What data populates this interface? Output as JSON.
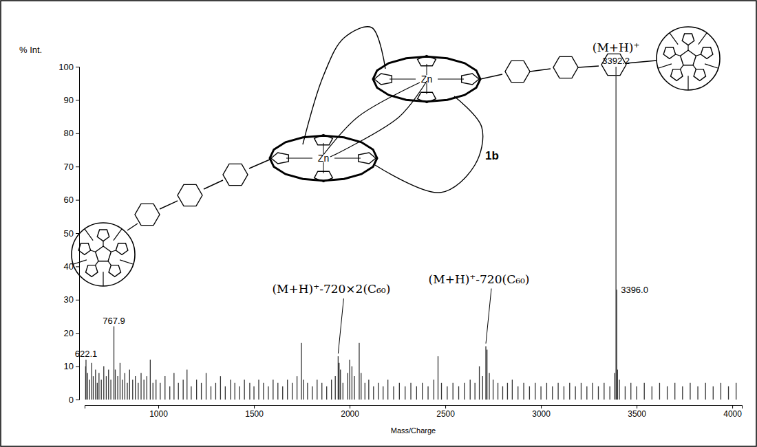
{
  "chart_data": {
    "type": "bar",
    "x_label": "Mass/Charge",
    "y_label": "% Int.",
    "x": [
      620,
      622.1,
      630,
      641,
      652,
      660,
      672,
      681,
      690,
      702,
      715,
      728,
      740,
      752,
      767.9,
      775,
      788,
      800,
      812,
      825,
      838,
      850,
      866,
      880,
      895,
      910,
      925,
      940,
      958,
      972,
      988,
      1010,
      1035,
      1060,
      1082,
      1105,
      1130,
      1150,
      1172,
      1200,
      1225,
      1250,
      1275,
      1300,
      1325,
      1350,
      1378,
      1400,
      1425,
      1450,
      1478,
      1500,
      1525,
      1550,
      1575,
      1600,
      1625,
      1650,
      1675,
      1700,
      1725,
      1748,
      1760,
      1780,
      1805,
      1830,
      1855,
      1880,
      1905,
      1925,
      1940,
      1945,
      1952,
      1965,
      1990,
      2000,
      2012,
      2025,
      2050,
      2060,
      2080,
      2100,
      2125,
      2150,
      2175,
      2200,
      2230,
      2260,
      2290,
      2320,
      2350,
      2380,
      2410,
      2440,
      2462,
      2480,
      2510,
      2540,
      2570,
      2600,
      2630,
      2655,
      2678,
      2695,
      2712,
      2718,
      2730,
      2750,
      2775,
      2800,
      2825,
      2850,
      2880,
      2910,
      2940,
      2970,
      3000,
      3030,
      3060,
      3090,
      3120,
      3150,
      3180,
      3210,
      3240,
      3270,
      3300,
      3330,
      3360,
      3385,
      3392.2,
      3396.0,
      3400,
      3410,
      3440,
      3470,
      3500,
      3540,
      3580,
      3620,
      3660,
      3700,
      3740,
      3780,
      3820,
      3860,
      3900,
      3940,
      3980,
      4020
    ],
    "values": [
      10,
      12,
      8,
      6,
      11,
      7,
      9,
      5,
      8,
      6,
      10,
      7,
      9,
      6,
      22,
      9,
      7,
      11,
      6,
      8,
      5,
      9,
      6,
      7,
      5,
      8,
      6,
      7,
      12,
      5,
      6,
      5,
      7,
      4,
      8,
      5,
      6,
      9,
      4,
      6,
      5,
      8,
      4,
      5,
      7,
      4,
      6,
      5,
      4,
      6,
      5,
      4,
      6,
      5,
      4,
      6,
      5,
      4,
      6,
      5,
      7,
      17,
      6,
      5,
      4,
      6,
      5,
      4,
      6,
      7,
      13,
      11,
      9,
      5,
      8,
      12,
      10,
      7,
      17,
      8,
      5,
      6,
      4,
      5,
      4,
      6,
      4,
      5,
      4,
      5,
      4,
      5,
      4,
      6,
      13,
      5,
      4,
      5,
      4,
      5,
      6,
      5,
      10,
      7,
      16,
      15,
      8,
      6,
      5,
      4,
      5,
      6,
      4,
      5,
      4,
      5,
      4,
      5,
      4,
      5,
      4,
      5,
      4,
      5,
      4,
      5,
      4,
      5,
      4,
      8,
      100,
      33,
      9,
      6,
      4,
      5,
      4,
      5,
      4,
      5,
      4,
      5,
      4,
      5,
      4,
      5,
      4,
      5,
      4,
      5
    ],
    "color": "#333333",
    "xlim": [
      615,
      4050
    ],
    "xticks": [
      1000,
      1500,
      2000,
      2500,
      3000,
      3500,
      4000
    ],
    "ylim": [
      0,
      100
    ],
    "yticks": [
      0,
      10,
      20,
      30,
      40,
      50,
      60,
      70,
      80,
      90,
      100
    ],
    "grid": false,
    "peak_labels": [
      622.1,
      767.9,
      3392.2,
      {
        "value": 3396,
        "label": "3396.0"
      }
    ],
    "annotations": [
      {
        "text": "(M+H)⁺",
        "x": 3392.2,
        "y": 100
      },
      {
        "text": "(M+H)⁺-720×2(C₆₀)",
        "x": 1940,
        "y": 13
      },
      {
        "text": "(M+H)⁺-720(C₆₀)",
        "x": 2712,
        "y": 16
      }
    ]
  },
  "structure": {
    "label": "1b",
    "metal": "Zn"
  }
}
